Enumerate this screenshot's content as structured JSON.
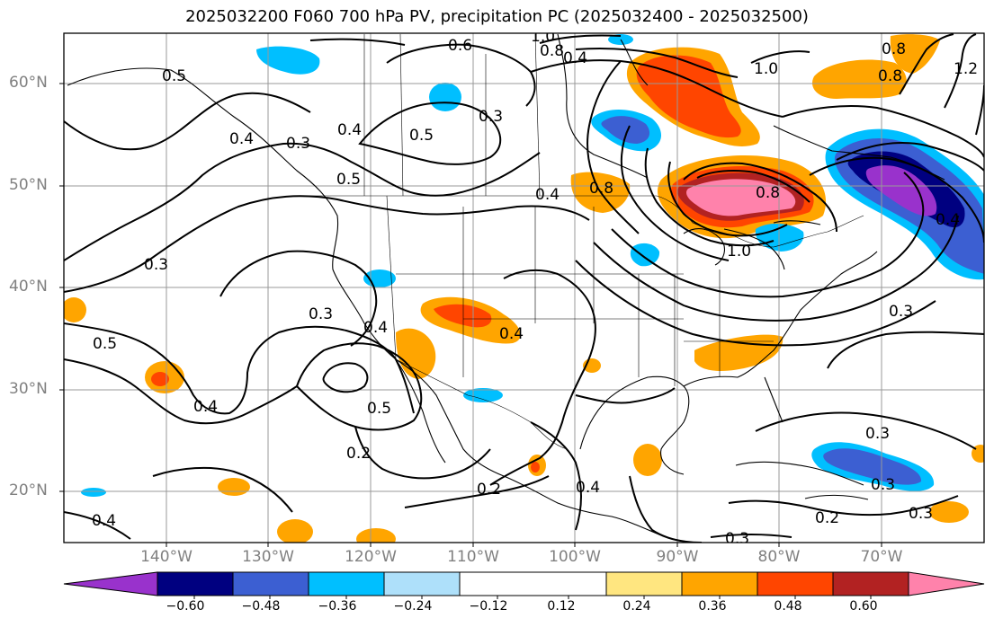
{
  "title": "2025032200 F060 700 hPa PV, precipitation PC (2025032400 - 2025032500)",
  "lat_labels": [
    "60°N",
    "50°N",
    "40°N",
    "30°N",
    "20°N"
  ],
  "lon_labels": [
    "140°W",
    "130°W",
    "120°W",
    "110°W",
    "100°W",
    "90°W",
    "80°W",
    "70°W"
  ],
  "colorbar": {
    "tick_labels": [
      "−0.60",
      "−0.48",
      "−0.36",
      "−0.24",
      "−0.12",
      "0.12",
      "0.24",
      "0.36",
      "0.48",
      "0.60"
    ],
    "colors": [
      "#9932cc",
      "#000080",
      "#3c5fd2",
      "#00bfff",
      "#aee0fa",
      "#ffffff",
      "#ffe680",
      "#ffa500",
      "#ff4500",
      "#b22222",
      "#ff82ab"
    ]
  },
  "contour_labels": [
    "0.5",
    "0.6",
    "1.0",
    "0.8",
    "0.4",
    "0.3",
    "0.4",
    "0.5",
    "0.3",
    "0.4",
    "0.5",
    "0.3",
    "0.4",
    "0.8",
    "1.0",
    "0.8",
    "0.8",
    "1.2",
    "0.8",
    "0.4",
    "0.4",
    "0.3",
    "0.3",
    "0.5",
    "0.4",
    "0.5",
    "0.4",
    "0.4",
    "0.2",
    "0.2",
    "0.2",
    "0.4",
    "0.3",
    "0.3",
    "0.3",
    "0.3",
    "1.0"
  ]
}
